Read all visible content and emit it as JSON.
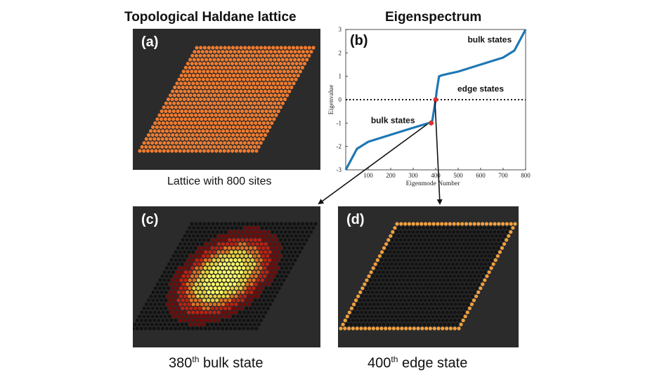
{
  "headings": {
    "left": "Topological Haldane lattice",
    "right": "Eigenspectrum"
  },
  "panels": {
    "a": {
      "label": "(a)",
      "caption": "Lattice with 800 sites"
    },
    "b": {
      "label": "(b)"
    },
    "c": {
      "label": "(c)",
      "caption_num": "380",
      "caption_sup": "th",
      "caption_rest": " bulk state"
    },
    "d": {
      "label": "(d)",
      "caption_num": "400",
      "caption_sup": "th",
      "caption_rest": " edge state"
    }
  },
  "chart_data": {
    "type": "scatter",
    "xlabel": "Eigenmode Number",
    "ylabel": "Eigenvalue",
    "xlim": [
      0,
      800
    ],
    "ylim": [
      -3,
      3
    ],
    "xticks": [
      100,
      200,
      300,
      400,
      500,
      600,
      700,
      800
    ],
    "yticks": [
      -3,
      -2,
      -1,
      0,
      1,
      2,
      3
    ],
    "series": [
      {
        "color": "#1f77b4",
        "points": [
          [
            0,
            -3.0
          ],
          [
            50,
            -2.1
          ],
          [
            100,
            -1.8
          ],
          [
            200,
            -1.5
          ],
          [
            300,
            -1.2
          ],
          [
            370,
            -1.0
          ],
          [
            385,
            -0.9
          ],
          [
            395,
            -0.3
          ],
          [
            400,
            0.0
          ],
          [
            405,
            0.4
          ],
          [
            415,
            1.0
          ],
          [
            430,
            1.05
          ],
          [
            500,
            1.2
          ],
          [
            600,
            1.5
          ],
          [
            700,
            1.8
          ],
          [
            750,
            2.1
          ],
          [
            800,
            3.0
          ]
        ]
      }
    ],
    "highlighted_points": [
      {
        "x": 380,
        "y": -1.0,
        "color": "#e0302a"
      },
      {
        "x": 400,
        "y": 0.0,
        "color": "#e0302a"
      }
    ],
    "reference_line": {
      "y": 0,
      "style": "dotted"
    },
    "annotations": [
      {
        "text": "bulk states",
        "x": 640,
        "y": 2.45
      },
      {
        "text": "edge states",
        "x": 600,
        "y": 0.35
      },
      {
        "text": "bulk states",
        "x": 210,
        "y": -1.0
      }
    ]
  },
  "lattice": {
    "dot_color": "#f07b2f",
    "edge_color": "#f0a040",
    "bulk_colors": [
      "#ffff66",
      "#e8d040",
      "#e07020",
      "#c02010",
      "#700a08",
      "#121212"
    ]
  },
  "arrows_color": "#111111"
}
